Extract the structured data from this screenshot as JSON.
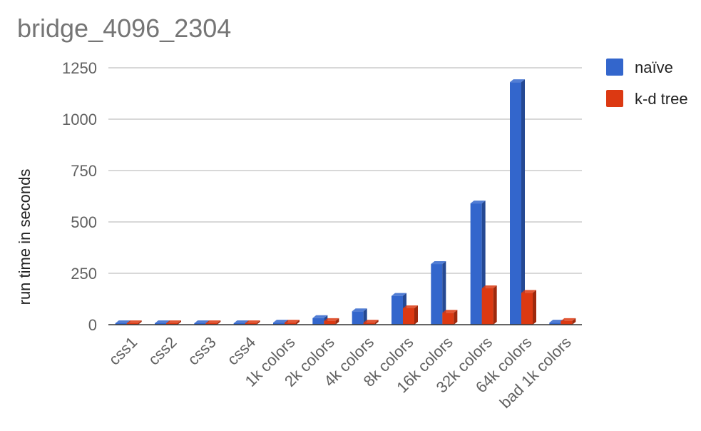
{
  "chart_data": {
    "type": "bar",
    "title": "bridge_4096_2304",
    "ylabel": "run time in seconds",
    "xlabel": "",
    "categories": [
      "css1",
      "css2",
      "css3",
      "css4",
      "1k colors",
      "2k colors",
      "4k colors",
      "8k colors",
      "16k colors",
      "32k colors",
      "64k colors",
      "bad 1k colors"
    ],
    "series": [
      {
        "name": "naïve",
        "color": "#3366cc",
        "values": [
          0,
          0,
          0,
          0,
          10,
          32,
          65,
          140,
          295,
          590,
          1180,
          10
        ]
      },
      {
        "name": "k-d tree",
        "color": "#dc3912",
        "values": [
          0,
          0,
          0,
          0,
          10,
          18,
          10,
          80,
          58,
          177,
          155,
          18
        ]
      }
    ],
    "ylim": [
      0,
      1250
    ],
    "yticks": [
      "0",
      "250",
      "500",
      "750",
      "1000",
      "1250"
    ],
    "grid": true,
    "legend": "right",
    "style": "3d-bar"
  }
}
